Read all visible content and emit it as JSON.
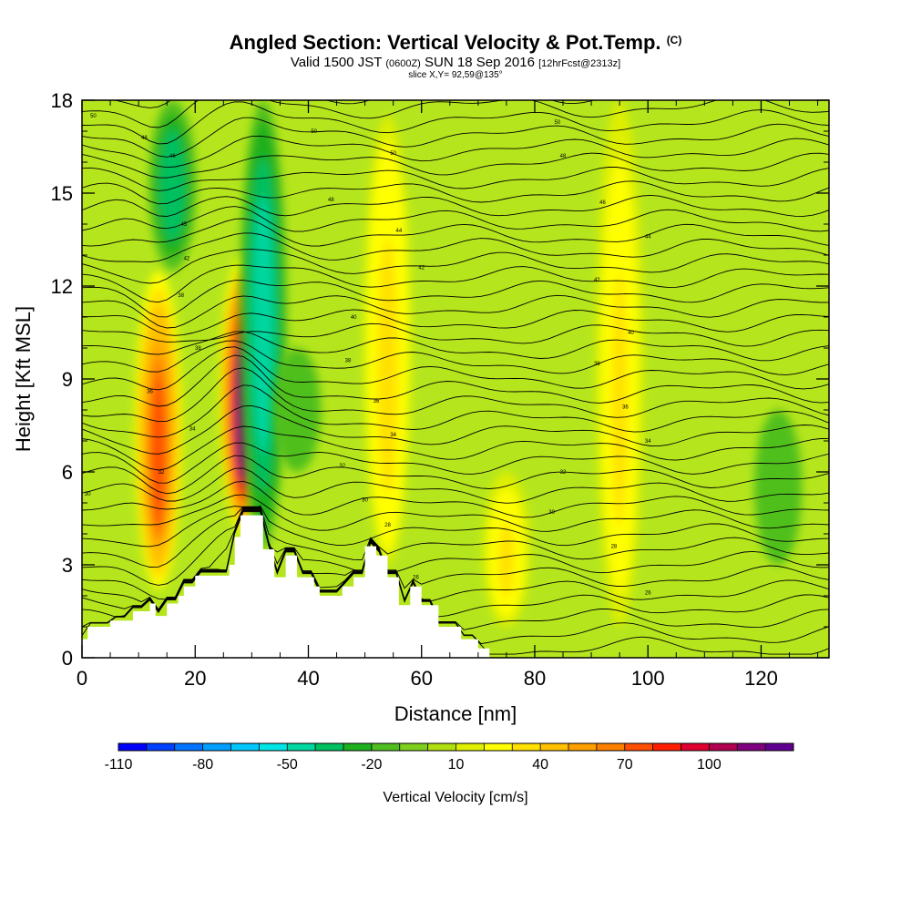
{
  "header": {
    "title": "Angled Section: Vertical Velocity & Pot.Temp.",
    "title_tag": "(C)",
    "valid_prefix": "Valid 1500 JST",
    "valid_utc": "(0600Z)",
    "valid_date": "SUN 18 Sep 2016",
    "forecast": "[12hrFcst@2313z]",
    "slice": "slice X,Y= 92,59@135°"
  },
  "chart_data": {
    "type": "heatmap",
    "xlabel": "Distance [nm]",
    "ylabel": "Height [Kft MSL]",
    "xlim": [
      0,
      132
    ],
    "ylim": [
      0,
      18
    ],
    "x_ticks": [
      "0",
      "20",
      "40",
      "60",
      "80",
      "100",
      "120"
    ],
    "y_ticks": [
      "0",
      "3",
      "6",
      "9",
      "12",
      "15",
      "18"
    ],
    "colorbar": {
      "title": "Vertical Velocity [cm/s]",
      "tick_labels": [
        "-110",
        "-80",
        "-50",
        "-20",
        "10",
        "40",
        "70",
        "100"
      ],
      "levels": [
        -110,
        -100,
        -90,
        -80,
        -70,
        -60,
        -50,
        -40,
        -30,
        -20,
        -10,
        0,
        10,
        20,
        30,
        40,
        50,
        60,
        70,
        80,
        90,
        100,
        110,
        120
      ],
      "colors": [
        "#0000ff",
        "#0040ff",
        "#0073ff",
        "#009fff",
        "#00c8ff",
        "#00e6e6",
        "#00d6a0",
        "#00c060",
        "#1fb01f",
        "#4fbf1f",
        "#7fcf1f",
        "#afdf0f",
        "#dfef00",
        "#ffff00",
        "#ffe000",
        "#ffc000",
        "#ffa000",
        "#ff7f00",
        "#ff4f00",
        "#ff1f00",
        "#e0002f",
        "#b0004f",
        "#80007f",
        "#600090"
      ]
    },
    "updrafts": [
      {
        "x": 13.5,
        "top_kft": 12.5,
        "bottom_kft": 2.2,
        "peak_cms": 75
      },
      {
        "x": 28.5,
        "top_kft": 13.0,
        "bottom_kft": 4.0,
        "peak_cms": 110
      },
      {
        "x": 54,
        "top_kft": 17.5,
        "bottom_kft": 3.0,
        "peak_cms": 35
      },
      {
        "x": 75,
        "top_kft": 6.0,
        "bottom_kft": 1.0,
        "peak_cms": 30
      },
      {
        "x": 95,
        "top_kft": 18.0,
        "bottom_kft": 1.0,
        "peak_cms": 30
      }
    ],
    "downdrafts": [
      {
        "x": 16,
        "top_kft": 18.0,
        "bottom_kft": 12.5,
        "peak_cms": -40
      },
      {
        "x": 32,
        "top_kft": 18.0,
        "bottom_kft": 3.5,
        "peak_cms": -45
      },
      {
        "x": 38,
        "top_kft": 10.0,
        "bottom_kft": 6.0,
        "peak_cms": -20
      },
      {
        "x": 123,
        "top_kft": 8.0,
        "bottom_kft": 3.0,
        "peak_cms": -15
      }
    ],
    "terrain": [
      {
        "x": 0,
        "kft": 0.6
      },
      {
        "x": 1,
        "kft": 1.0
      },
      {
        "x": 5,
        "kft": 1.2
      },
      {
        "x": 9,
        "kft": 1.5
      },
      {
        "x": 12,
        "kft": 1.75
      },
      {
        "x": 13,
        "kft": 1.35
      },
      {
        "x": 15,
        "kft": 1.75
      },
      {
        "x": 17,
        "kft": 2.0
      },
      {
        "x": 18,
        "kft": 2.3
      },
      {
        "x": 20,
        "kft": 2.65
      },
      {
        "x": 24,
        "kft": 2.65
      },
      {
        "x": 26,
        "kft": 3.0
      },
      {
        "x": 27,
        "kft": 3.9
      },
      {
        "x": 28,
        "kft": 4.6
      },
      {
        "x": 31,
        "kft": 4.6
      },
      {
        "x": 32,
        "kft": 3.5
      },
      {
        "x": 34,
        "kft": 2.6
      },
      {
        "x": 36,
        "kft": 3.3
      },
      {
        "x": 38,
        "kft": 2.6
      },
      {
        "x": 41,
        "kft": 2.3
      },
      {
        "x": 42,
        "kft": 2.0
      },
      {
        "x": 46,
        "kft": 2.3
      },
      {
        "x": 48,
        "kft": 2.6
      },
      {
        "x": 50,
        "kft": 3.6
      },
      {
        "x": 52,
        "kft": 3.3
      },
      {
        "x": 54,
        "kft": 2.6
      },
      {
        "x": 56,
        "kft": 1.7
      },
      {
        "x": 58,
        "kft": 2.3
      },
      {
        "x": 60,
        "kft": 1.7
      },
      {
        "x": 63,
        "kft": 1.0
      },
      {
        "x": 67,
        "kft": 0.6
      },
      {
        "x": 70,
        "kft": 0.3
      },
      {
        "x": 72,
        "kft": 0.0
      },
      {
        "x": 132,
        "kft": 0.0
      }
    ],
    "theta_labels": [
      {
        "x": 2,
        "kft": 17.5,
        "text": "50"
      },
      {
        "x": 11,
        "kft": 16.8,
        "text": "48"
      },
      {
        "x": 16,
        "kft": 16.2,
        "text": "46"
      },
      {
        "x": 18,
        "kft": 14.0,
        "text": "45"
      },
      {
        "x": 18.5,
        "kft": 12.9,
        "text": "42"
      },
      {
        "x": 17.5,
        "kft": 11.7,
        "text": "38"
      },
      {
        "x": 20.5,
        "kft": 10.0,
        "text": "38"
      },
      {
        "x": 12,
        "kft": 8.6,
        "text": "36"
      },
      {
        "x": 19.5,
        "kft": 7.4,
        "text": "34"
      },
      {
        "x": 14,
        "kft": 6.0,
        "text": "32"
      },
      {
        "x": 1,
        "kft": 5.3,
        "text": "30"
      },
      {
        "x": 41,
        "kft": 17.0,
        "text": "50"
      },
      {
        "x": 55,
        "kft": 16.3,
        "text": "50"
      },
      {
        "x": 44,
        "kft": 14.8,
        "text": "48"
      },
      {
        "x": 56,
        "kft": 13.8,
        "text": "44"
      },
      {
        "x": 60,
        "kft": 12.6,
        "text": "42"
      },
      {
        "x": 48,
        "kft": 11.0,
        "text": "40"
      },
      {
        "x": 47,
        "kft": 9.6,
        "text": "38"
      },
      {
        "x": 52,
        "kft": 8.3,
        "text": "36"
      },
      {
        "x": 55,
        "kft": 7.2,
        "text": "34"
      },
      {
        "x": 46,
        "kft": 6.2,
        "text": "32"
      },
      {
        "x": 50,
        "kft": 5.1,
        "text": "30"
      },
      {
        "x": 54,
        "kft": 4.3,
        "text": "28"
      },
      {
        "x": 59,
        "kft": 2.6,
        "text": "26"
      },
      {
        "x": 84,
        "kft": 17.3,
        "text": "50"
      },
      {
        "x": 85,
        "kft": 16.2,
        "text": "48"
      },
      {
        "x": 92,
        "kft": 14.7,
        "text": "46"
      },
      {
        "x": 100,
        "kft": 13.6,
        "text": "44"
      },
      {
        "x": 91,
        "kft": 12.2,
        "text": "42"
      },
      {
        "x": 97,
        "kft": 10.5,
        "text": "40"
      },
      {
        "x": 91,
        "kft": 9.5,
        "text": "38"
      },
      {
        "x": 96,
        "kft": 8.1,
        "text": "36"
      },
      {
        "x": 100,
        "kft": 7.0,
        "text": "34"
      },
      {
        "x": 85,
        "kft": 6.0,
        "text": "32"
      },
      {
        "x": 83,
        "kft": 4.7,
        "text": "30"
      },
      {
        "x": 94,
        "kft": 3.6,
        "text": "28"
      },
      {
        "x": 100,
        "kft": 2.1,
        "text": "26"
      }
    ]
  }
}
